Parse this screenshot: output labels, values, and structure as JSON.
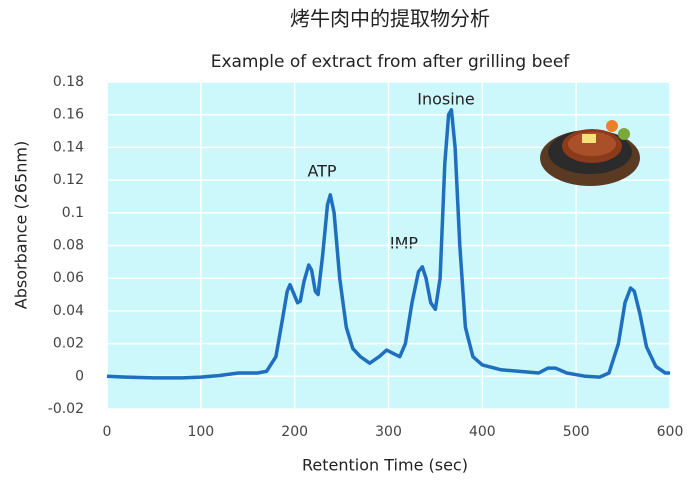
{
  "chart_data": {
    "type": "line",
    "title": "烤牛肉中的提取物分析",
    "subtitle": "Example of extract from after grilling beef",
    "x_label": "Retention  Time (sec)",
    "y_label": "Absorbance (265nm)",
    "annotations": [
      "ATP",
      "IMP",
      "Inosine"
    ],
    "x": [
      0,
      20,
      50,
      80,
      100,
      120,
      140,
      160,
      170,
      180,
      187,
      192,
      195,
      198,
      203,
      206,
      210,
      215,
      218,
      222,
      225,
      230,
      235,
      238,
      242,
      248,
      255,
      262,
      270,
      280,
      290,
      298,
      305,
      312,
      318,
      325,
      332,
      336,
      340,
      345,
      350,
      355,
      360,
      364,
      367,
      371,
      376,
      382,
      390,
      400,
      420,
      440,
      460,
      470,
      478,
      490,
      510,
      525,
      535,
      545,
      552,
      558,
      562,
      568,
      575,
      585,
      595,
      600
    ],
    "series": [
      {
        "color": "#1f6fc0",
        "values": [
          0,
          -0.0005,
          -0.001,
          -0.001,
          -0.0005,
          0.0005,
          0.002,
          0.002,
          0.003,
          0.012,
          0.035,
          0.052,
          0.056,
          0.052,
          0.045,
          0.046,
          0.058,
          0.068,
          0.065,
          0.052,
          0.05,
          0.075,
          0.105,
          0.111,
          0.1,
          0.06,
          0.03,
          0.017,
          0.012,
          0.008,
          0.012,
          0.016,
          0.014,
          0.012,
          0.02,
          0.045,
          0.064,
          0.067,
          0.06,
          0.045,
          0.041,
          0.06,
          0.13,
          0.16,
          0.163,
          0.14,
          0.08,
          0.03,
          0.012,
          0.007,
          0.004,
          0.003,
          0.002,
          0.005,
          0.005,
          0.002,
          0,
          -0.0005,
          0.002,
          0.02,
          0.045,
          0.054,
          0.052,
          0.038,
          0.018,
          0.006,
          0.002,
          0.002
        ]
      }
    ],
    "xlim": [
      0,
      600
    ],
    "xticks": [
      0,
      100,
      200,
      300,
      400,
      500,
      600
    ],
    "ylim": [
      -0.02,
      0.18
    ],
    "yticks": [
      -0.02,
      0,
      0.02,
      0.04,
      0.06,
      0.08,
      0.1,
      0.12,
      0.14,
      0.16,
      0.18
    ],
    "grid": true,
    "plot_background": "#ccf7fb"
  }
}
